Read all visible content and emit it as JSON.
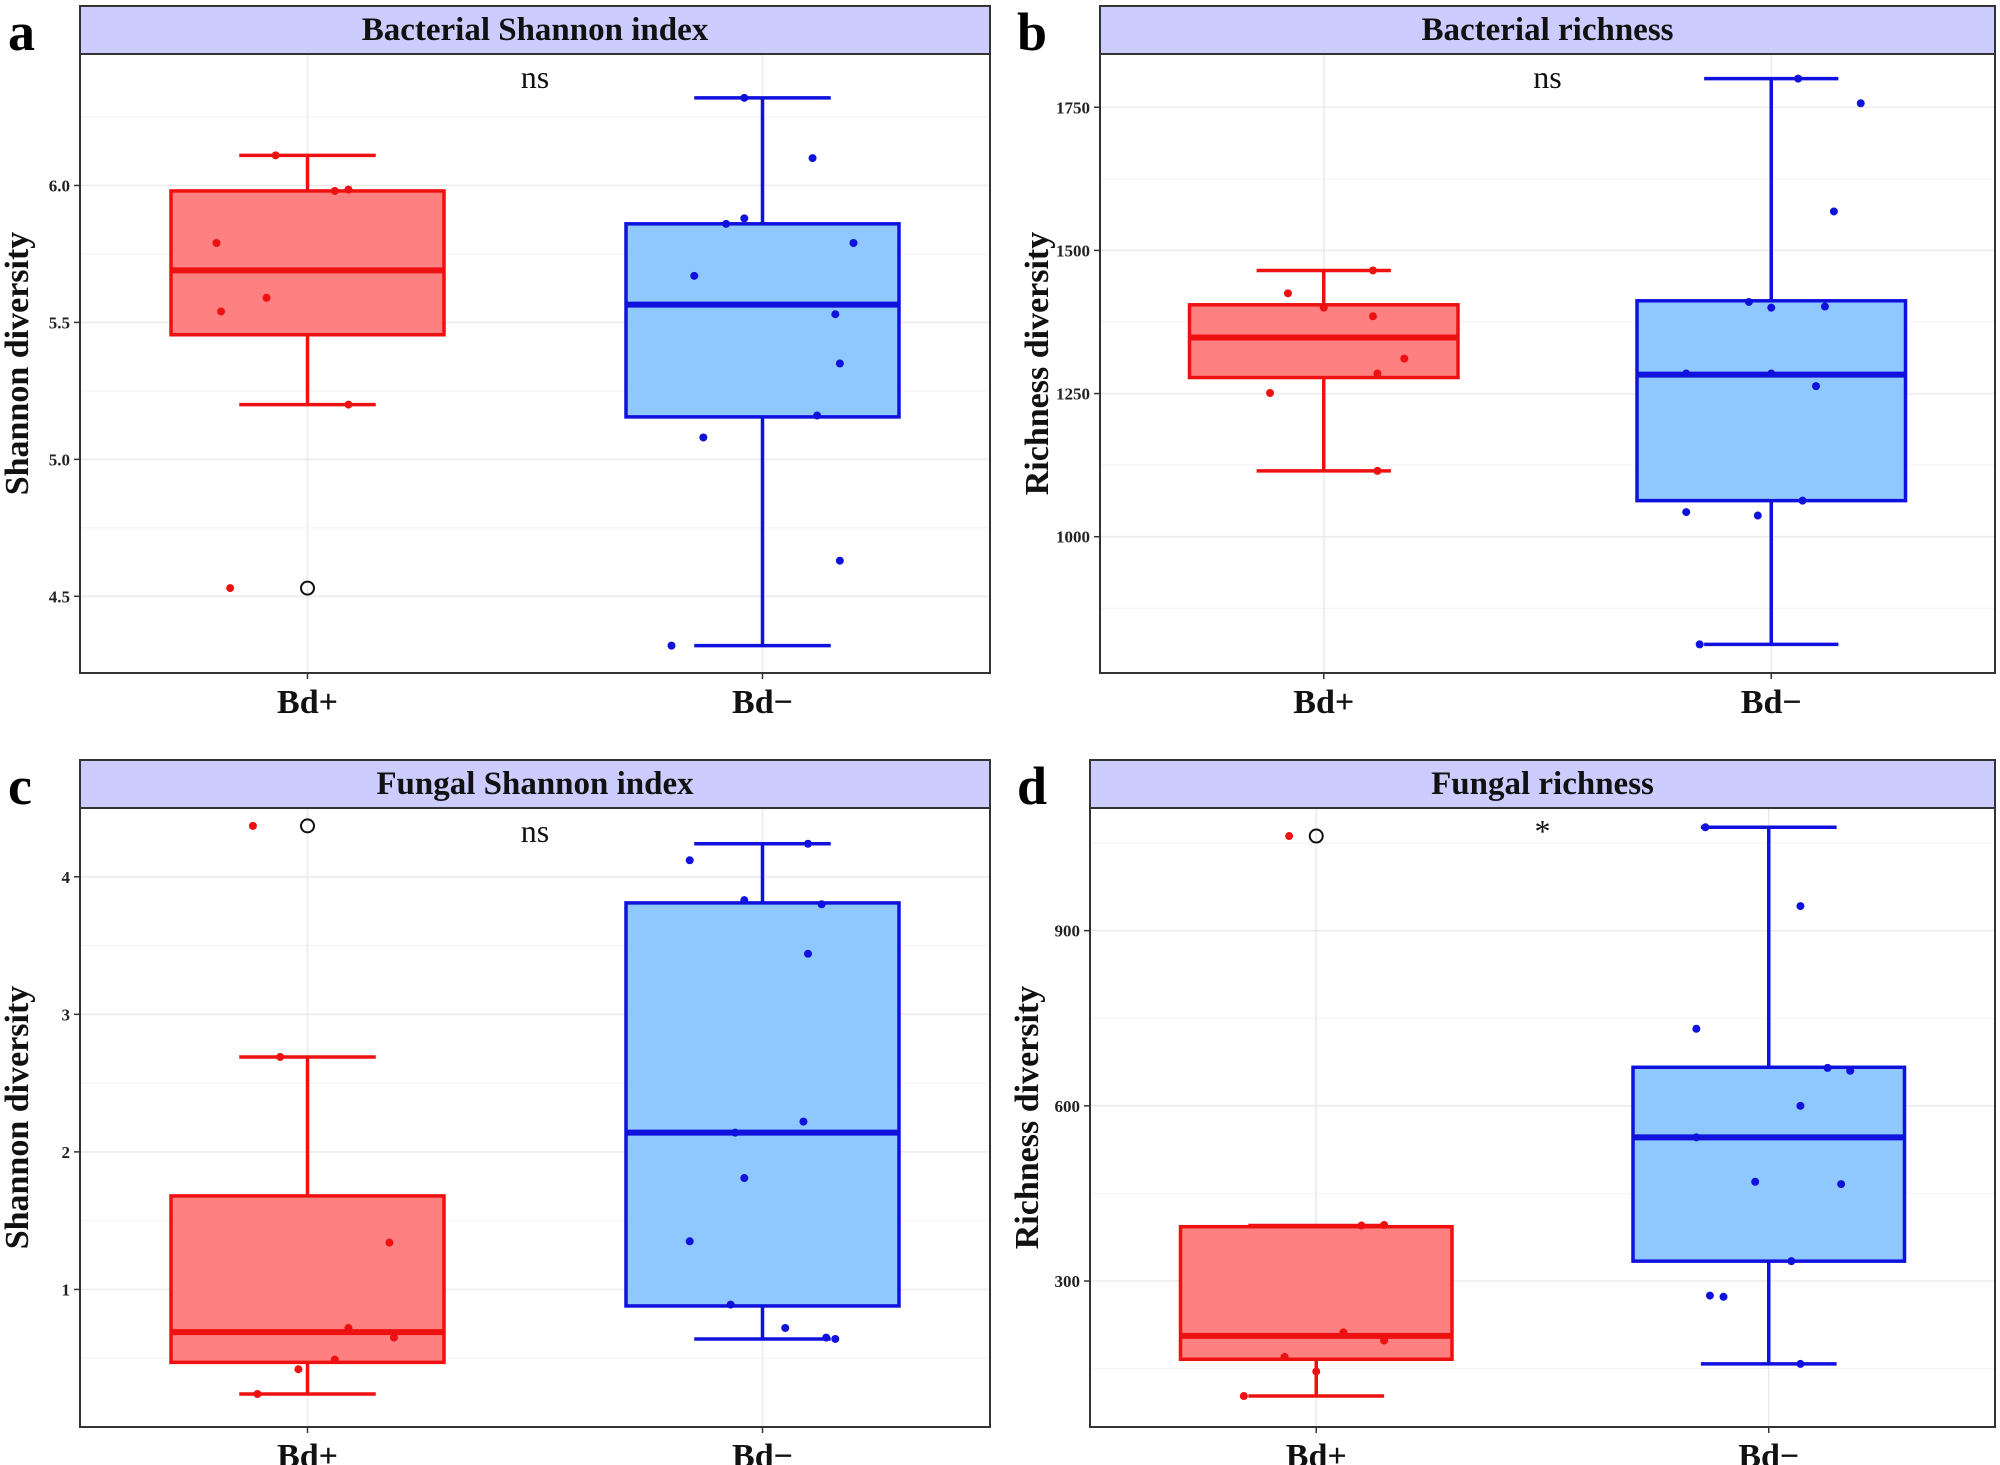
{
  "colors": {
    "strip_fill": "#ccccff",
    "bd_pos_line": "#ee1111",
    "bd_pos_fill": "#ff8080",
    "bd_neg_line": "#1111dd",
    "bd_neg_fill": "#8fc8ff",
    "grid": "#ebebeb",
    "frame": "#333333"
  },
  "chart_data": [
    {
      "letter": "a",
      "type": "boxplot",
      "title": "Bacterial Shannon index",
      "ylabel": "Shannon diversity",
      "significance": "ns",
      "ylim": [
        4.22,
        6.48
      ],
      "yticks": [
        4.5,
        5.0,
        5.5,
        6.0
      ],
      "ytick_labels": [
        "4.5",
        "5.0",
        "5.5",
        "6.0"
      ],
      "minor_ticks": [
        4.75,
        5.25,
        5.75,
        6.25
      ],
      "groups": [
        {
          "name": "Bd+",
          "whisker_low": 5.2,
          "q1": 5.455,
          "median": 5.69,
          "q3": 5.98,
          "whisker_high": 6.11,
          "outliers": [
            4.53
          ],
          "points": [
            {
              "x": -0.17,
              "y": 4.53
            },
            {
              "x": -0.19,
              "y": 5.54
            },
            {
              "x": -0.2,
              "y": 5.79
            },
            {
              "x": -0.09,
              "y": 5.59
            },
            {
              "x": -0.07,
              "y": 6.11
            },
            {
              "x": 0.06,
              "y": 5.98
            },
            {
              "x": 0.09,
              "y": 5.985
            },
            {
              "x": 0.09,
              "y": 5.2
            }
          ]
        },
        {
          "name": "Bd−",
          "whisker_low": 4.32,
          "q1": 5.155,
          "median": 5.565,
          "q3": 5.86,
          "whisker_high": 6.32,
          "outliers": [],
          "points": [
            {
              "x": -0.2,
              "y": 4.32
            },
            {
              "x": -0.13,
              "y": 5.08
            },
            {
              "x": -0.15,
              "y": 5.67
            },
            {
              "x": -0.08,
              "y": 5.86
            },
            {
              "x": -0.04,
              "y": 5.88
            },
            {
              "x": -0.04,
              "y": 6.32
            },
            {
              "x": 0.11,
              "y": 6.1
            },
            {
              "x": 0.12,
              "y": 5.16
            },
            {
              "x": 0.16,
              "y": 5.53
            },
            {
              "x": 0.17,
              "y": 5.35
            },
            {
              "x": 0.2,
              "y": 5.79
            },
            {
              "x": 0.17,
              "y": 4.63
            }
          ]
        }
      ]
    },
    {
      "letter": "b",
      "type": "boxplot",
      "title": "Bacterial richness",
      "ylabel": "Richness diversity",
      "significance": "ns",
      "ylim": [
        762,
        1843
      ],
      "yticks": [
        1000,
        1250,
        1500,
        1750
      ],
      "ytick_labels": [
        "1000",
        "1250",
        "1500",
        "1750"
      ],
      "minor_ticks": [
        875,
        1125,
        1375,
        1625
      ],
      "groups": [
        {
          "name": "Bd+",
          "whisker_low": 1115,
          "q1": 1278,
          "median": 1348,
          "q3": 1405,
          "whisker_high": 1465,
          "outliers": [],
          "points": [
            {
              "x": -0.12,
              "y": 1251
            },
            {
              "x": -0.08,
              "y": 1425
            },
            {
              "x": 0.0,
              "y": 1400
            },
            {
              "x": 0.11,
              "y": 1465
            },
            {
              "x": 0.11,
              "y": 1385
            },
            {
              "x": 0.12,
              "y": 1285
            },
            {
              "x": 0.12,
              "y": 1115
            },
            {
              "x": 0.18,
              "y": 1311
            }
          ]
        },
        {
          "name": "Bd−",
          "whisker_low": 812,
          "q1": 1063,
          "median": 1283,
          "q3": 1412,
          "whisker_high": 1800,
          "outliers": [],
          "points": [
            {
              "x": -0.19,
              "y": 1043
            },
            {
              "x": -0.19,
              "y": 1285
            },
            {
              "x": -0.16,
              "y": 812
            },
            {
              "x": -0.03,
              "y": 1037
            },
            {
              "x": -0.05,
              "y": 1410
            },
            {
              "x": 0.0,
              "y": 1400
            },
            {
              "x": 0.0,
              "y": 1285
            },
            {
              "x": 0.06,
              "y": 1800
            },
            {
              "x": 0.07,
              "y": 1063
            },
            {
              "x": 0.1,
              "y": 1263
            },
            {
              "x": 0.12,
              "y": 1402
            },
            {
              "x": 0.14,
              "y": 1568
            },
            {
              "x": 0.2,
              "y": 1757
            }
          ]
        }
      ]
    },
    {
      "letter": "c",
      "type": "boxplot",
      "title": "Fungal Shannon index",
      "ylabel": "Shannon diversity",
      "significance": "ns",
      "ylim": [
        0.0,
        4.5
      ],
      "yticks": [
        1,
        2,
        3,
        4
      ],
      "ytick_labels": [
        "1",
        "2",
        "3",
        "4"
      ],
      "minor_ticks": [
        0.5,
        1.5,
        2.5,
        3.5,
        4.5
      ],
      "groups": [
        {
          "name": "Bd+",
          "whisker_low": 0.24,
          "q1": 0.47,
          "median": 0.69,
          "q3": 1.68,
          "whisker_high": 2.69,
          "outliers": [
            4.37
          ],
          "points": [
            {
              "x": -0.12,
              "y": 4.37
            },
            {
              "x": -0.11,
              "y": 0.24
            },
            {
              "x": -0.06,
              "y": 2.69
            },
            {
              "x": -0.02,
              "y": 0.42
            },
            {
              "x": 0.06,
              "y": 0.49
            },
            {
              "x": 0.09,
              "y": 0.72
            },
            {
              "x": 0.18,
              "y": 1.34
            },
            {
              "x": 0.19,
              "y": 0.65
            }
          ]
        },
        {
          "name": "Bd−",
          "whisker_low": 0.64,
          "q1": 0.88,
          "median": 2.14,
          "q3": 3.81,
          "whisker_high": 4.24,
          "outliers": [],
          "points": [
            {
              "x": -0.16,
              "y": 4.12
            },
            {
              "x": -0.16,
              "y": 1.35
            },
            {
              "x": -0.06,
              "y": 2.14
            },
            {
              "x": -0.07,
              "y": 0.89
            },
            {
              "x": -0.04,
              "y": 3.83
            },
            {
              "x": -0.04,
              "y": 1.81
            },
            {
              "x": 0.05,
              "y": 0.72
            },
            {
              "x": 0.09,
              "y": 2.22
            },
            {
              "x": 0.1,
              "y": 3.44
            },
            {
              "x": 0.1,
              "y": 4.24
            },
            {
              "x": 0.13,
              "y": 3.8
            },
            {
              "x": 0.14,
              "y": 0.65
            },
            {
              "x": 0.16,
              "y": 0.64
            }
          ]
        }
      ]
    },
    {
      "letter": "d",
      "type": "boxplot",
      "title": "Fungal richness",
      "ylabel": "Richness diversity",
      "significance": "*",
      "ylim": [
        50,
        1110
      ],
      "yticks": [
        300,
        600,
        900
      ],
      "ytick_labels": [
        "300",
        "600",
        "900"
      ],
      "minor_ticks": [
        150,
        450,
        750,
        1050
      ],
      "groups": [
        {
          "name": "Bd+",
          "whisker_low": 103,
          "q1": 166,
          "median": 206,
          "q3": 393,
          "whisker_high": 395,
          "outliers": [
            1062
          ],
          "points": [
            {
              "x": -0.16,
              "y": 103
            },
            {
              "x": -0.07,
              "y": 170
            },
            {
              "x": -0.06,
              "y": 1062
            },
            {
              "x": 0.0,
              "y": 145
            },
            {
              "x": 0.06,
              "y": 212
            },
            {
              "x": 0.15,
              "y": 198
            },
            {
              "x": 0.15,
              "y": 396
            },
            {
              "x": 0.1,
              "y": 395
            }
          ]
        },
        {
          "name": "Bd−",
          "whisker_low": 158,
          "q1": 334,
          "median": 546,
          "q3": 666,
          "whisker_high": 1077,
          "outliers": [],
          "points": [
            {
              "x": -0.14,
              "y": 1077
            },
            {
              "x": -0.16,
              "y": 732
            },
            {
              "x": -0.16,
              "y": 546
            },
            {
              "x": -0.13,
              "y": 275
            },
            {
              "x": -0.1,
              "y": 273
            },
            {
              "x": -0.03,
              "y": 470
            },
            {
              "x": 0.05,
              "y": 334
            },
            {
              "x": 0.07,
              "y": 158
            },
            {
              "x": 0.07,
              "y": 942
            },
            {
              "x": 0.07,
              "y": 600
            },
            {
              "x": 0.13,
              "y": 665
            },
            {
              "x": 0.16,
              "y": 466
            },
            {
              "x": 0.18,
              "y": 660
            }
          ]
        }
      ]
    }
  ]
}
